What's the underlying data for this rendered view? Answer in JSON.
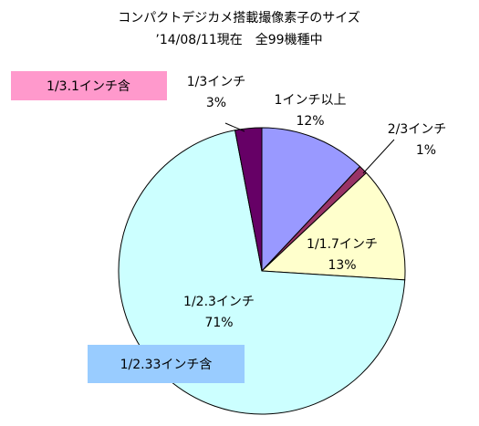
{
  "chart_data": {
    "type": "pie",
    "title": "コンパクトデジカメ搭載撮像素子のサイズ",
    "subtitle": "’14/08/11現在　全99機種中",
    "categories": [
      "1インチ以上",
      "2/3インチ",
      "1/1.7インチ",
      "1/2.3インチ",
      "1/3インチ"
    ],
    "values": [
      12,
      1,
      13,
      71,
      3
    ],
    "value_labels": [
      "12%",
      "1%",
      "13%",
      "71%",
      "3%"
    ],
    "colors": [
      "#9999ff",
      "#993366",
      "#ffffcc",
      "#ccffff",
      "#660066"
    ],
    "annotations": [
      "1/3.1インチ含",
      "1/2.33インチ含"
    ]
  }
}
